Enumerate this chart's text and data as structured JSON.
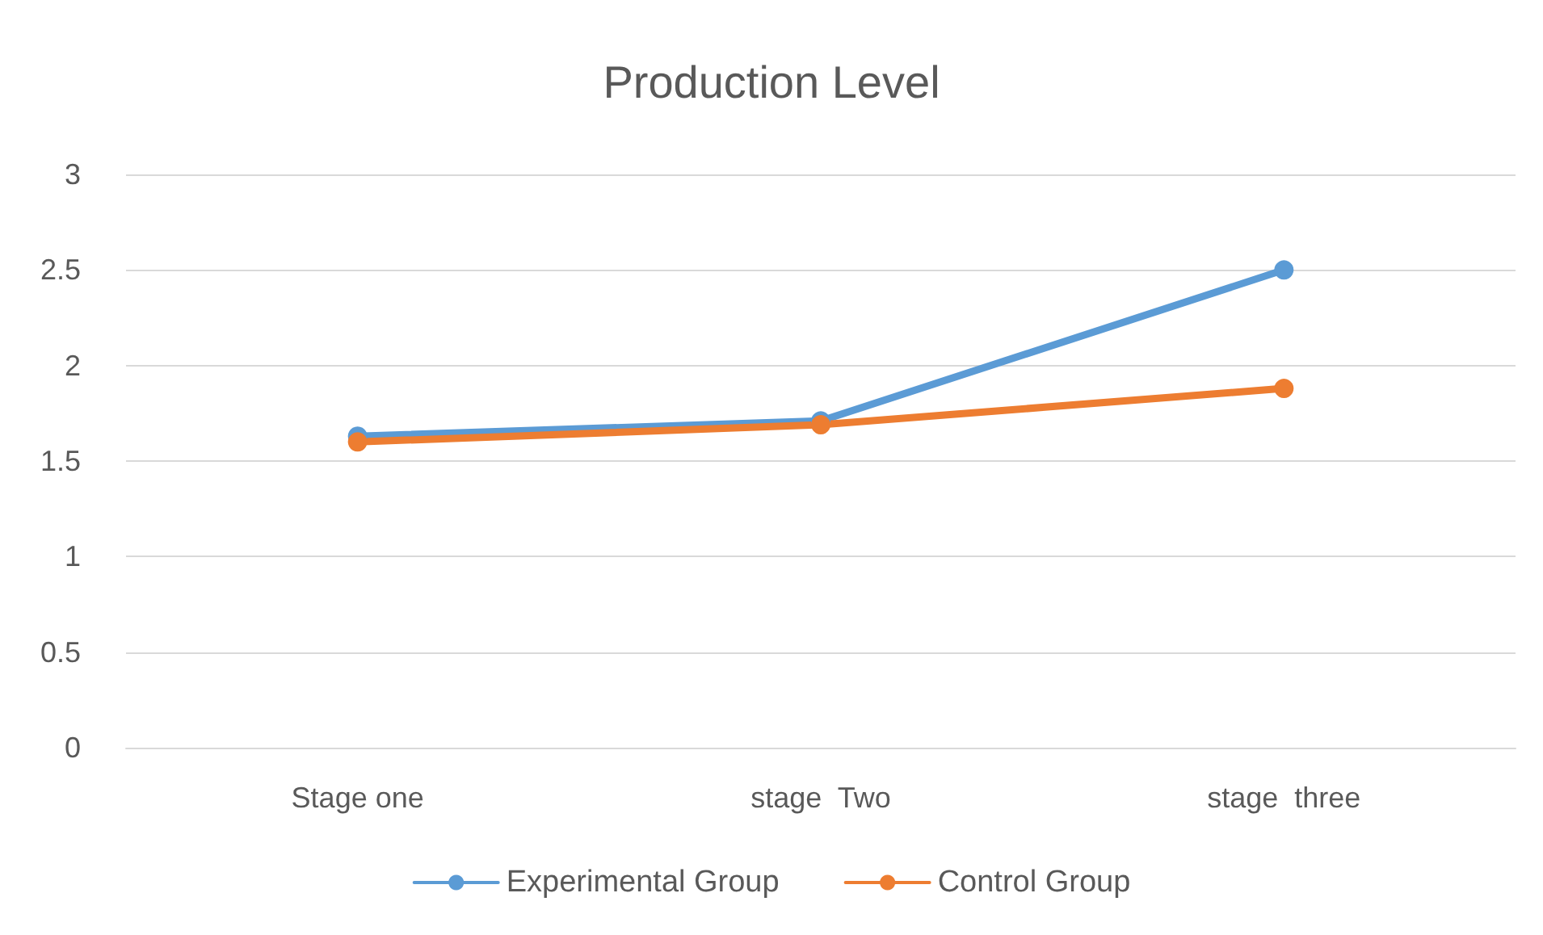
{
  "chart_data": {
    "type": "line",
    "title": "Production Level",
    "categories": [
      "Stage one",
      "stage  Two",
      "stage  three"
    ],
    "series": [
      {
        "name": "Experimental Group",
        "color": "#5b9bd5",
        "values": [
          1.63,
          1.71,
          2.5
        ]
      },
      {
        "name": "Control Group",
        "color": "#ed7d31",
        "values": [
          1.6,
          1.69,
          1.88
        ]
      }
    ],
    "ylim": [
      0,
      3
    ],
    "yticks": [
      0,
      0.5,
      1,
      1.5,
      2,
      2.5,
      3
    ],
    "grid": "y",
    "legend": "bottom",
    "marker": "circle",
    "line_style": "solid"
  }
}
